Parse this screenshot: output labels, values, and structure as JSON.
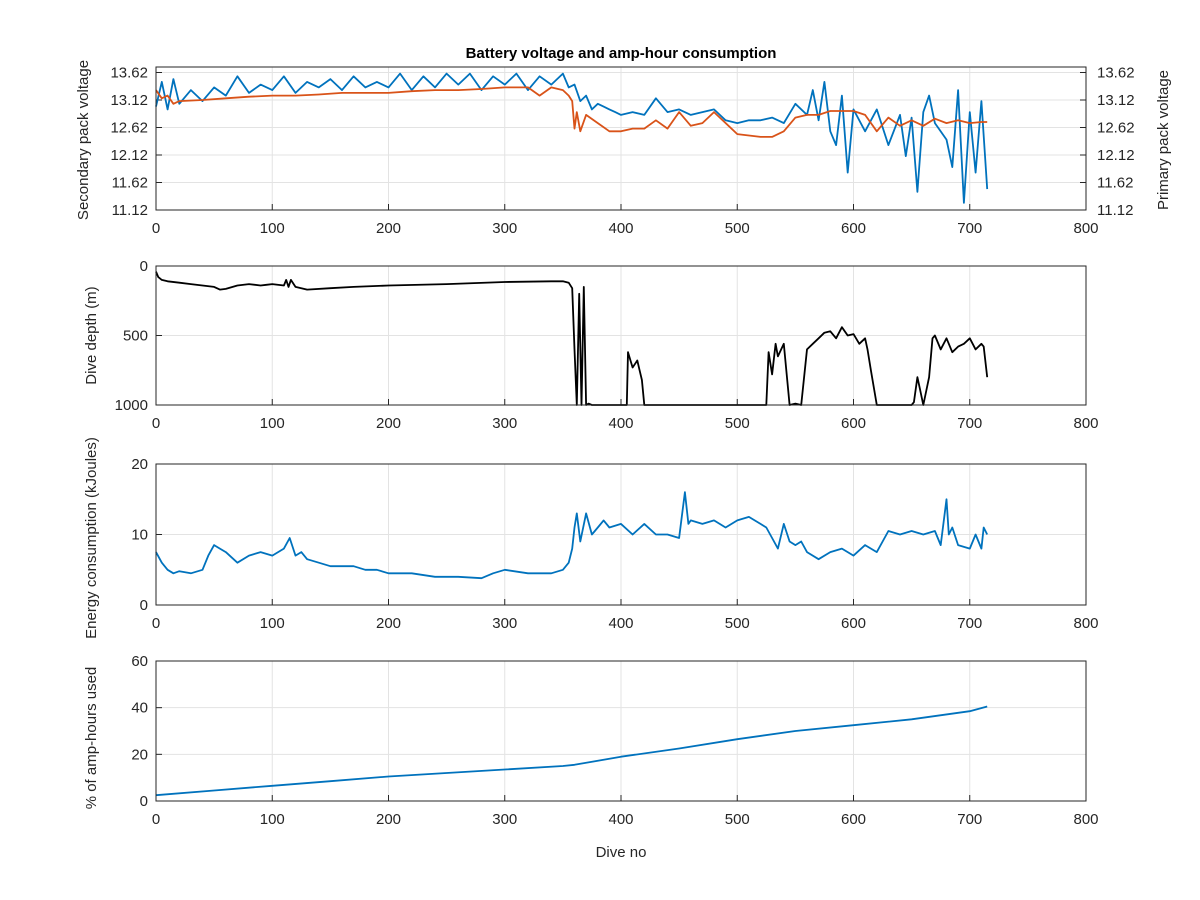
{
  "figure": {
    "title": "Battery voltage and amp-hour consumption",
    "xlabel": "Dive no",
    "x_ticks": [
      "0",
      "100",
      "200",
      "300",
      "400",
      "500",
      "600",
      "700",
      "800"
    ]
  },
  "colors": {
    "secondary": "#0072BD",
    "primary": "#D95319",
    "depth": "#000000",
    "energy": "#0072BD",
    "amphours": "#0072BD"
  },
  "chart_data": [
    {
      "type": "line",
      "title": "Battery voltage and amp-hour consumption",
      "xlabel": "",
      "xlim": [
        0,
        800
      ],
      "grid": true,
      "left_axis": {
        "label": "Secondary pack voltage",
        "ylim": [
          11.12,
          13.72
        ],
        "ticks": [
          "13.62",
          "13.12",
          "12.62",
          "12.12",
          "11.62",
          "11.12"
        ]
      },
      "right_axis": {
        "label": "Primary pack voltage",
        "ylim": [
          11.12,
          13.72
        ],
        "ticks": [
          "13.62",
          "13.12",
          "12.62",
          "12.12",
          "11.62",
          "11.12"
        ]
      },
      "series": [
        {
          "axis": "left",
          "color": "#0072BD",
          "x": [
            0,
            5,
            10,
            15,
            20,
            30,
            40,
            50,
            60,
            70,
            80,
            90,
            100,
            110,
            120,
            130,
            140,
            150,
            160,
            170,
            180,
            190,
            200,
            210,
            220,
            230,
            240,
            250,
            260,
            270,
            280,
            290,
            300,
            310,
            320,
            330,
            340,
            350,
            355,
            360,
            365,
            370,
            375,
            380,
            385,
            390,
            395,
            400,
            410,
            420,
            430,
            440,
            450,
            460,
            470,
            480,
            490,
            500,
            510,
            520,
            530,
            540,
            550,
            560,
            565,
            570,
            575,
            580,
            585,
            590,
            595,
            600,
            610,
            620,
            630,
            640,
            645,
            650,
            655,
            660,
            665,
            670,
            680,
            685,
            690,
            695,
            700,
            705,
            710,
            715
          ],
          "y": [
            13.0,
            13.45,
            12.95,
            13.5,
            13.05,
            13.3,
            13.1,
            13.35,
            13.2,
            13.55,
            13.25,
            13.4,
            13.3,
            13.55,
            13.25,
            13.45,
            13.35,
            13.5,
            13.3,
            13.55,
            13.35,
            13.45,
            13.35,
            13.6,
            13.3,
            13.55,
            13.35,
            13.6,
            13.4,
            13.6,
            13.3,
            13.55,
            13.4,
            13.6,
            13.3,
            13.55,
            13.4,
            13.6,
            13.35,
            13.4,
            13.1,
            13.2,
            12.95,
            13.05,
            13.0,
            12.95,
            12.9,
            12.85,
            12.9,
            12.85,
            13.15,
            12.9,
            12.95,
            12.85,
            12.9,
            12.95,
            12.75,
            12.7,
            12.75,
            12.75,
            12.8,
            12.7,
            13.05,
            12.85,
            13.3,
            12.75,
            13.45,
            12.55,
            12.3,
            13.2,
            11.8,
            12.95,
            12.55,
            12.95,
            12.3,
            12.85,
            12.1,
            12.8,
            11.45,
            12.9,
            13.2,
            12.7,
            12.4,
            11.9,
            13.3,
            11.25,
            12.9,
            11.8,
            13.1,
            11.5
          ]
        },
        {
          "axis": "right",
          "color": "#D95319",
          "x": [
            0,
            5,
            10,
            15,
            20,
            40,
            60,
            80,
            100,
            120,
            140,
            160,
            180,
            200,
            220,
            240,
            260,
            280,
            300,
            320,
            330,
            340,
            350,
            355,
            358,
            360,
            362,
            365,
            370,
            380,
            390,
            400,
            410,
            420,
            430,
            440,
            450,
            460,
            470,
            480,
            500,
            520,
            530,
            540,
            550,
            560,
            570,
            580,
            590,
            600,
            610,
            620,
            630,
            640,
            650,
            660,
            670,
            680,
            690,
            700,
            710,
            715
          ],
          "y": [
            13.3,
            13.15,
            13.2,
            13.05,
            13.1,
            13.12,
            13.15,
            13.18,
            13.2,
            13.2,
            13.22,
            13.25,
            13.25,
            13.25,
            13.28,
            13.3,
            13.3,
            13.32,
            13.35,
            13.35,
            13.2,
            13.35,
            13.3,
            13.2,
            13.1,
            12.6,
            12.9,
            12.55,
            12.85,
            12.7,
            12.55,
            12.55,
            12.6,
            12.6,
            12.75,
            12.6,
            12.9,
            12.65,
            12.7,
            12.9,
            12.5,
            12.45,
            12.45,
            12.55,
            12.8,
            12.85,
            12.85,
            12.92,
            12.92,
            12.92,
            12.85,
            12.55,
            12.8,
            12.65,
            12.75,
            12.65,
            12.78,
            12.7,
            12.75,
            12.7,
            12.72,
            12.72
          ]
        }
      ]
    },
    {
      "type": "line",
      "title": "",
      "xlabel": "",
      "ylabel": "Dive depth (m)",
      "xlim": [
        0,
        800
      ],
      "ylim": [
        0,
        1000
      ],
      "y_reversed": true,
      "y_ticks": [
        "0",
        "500",
        "1000"
      ],
      "grid": true,
      "series": [
        {
          "color": "#000000",
          "x": [
            0,
            2,
            5,
            10,
            20,
            30,
            40,
            50,
            55,
            60,
            70,
            80,
            90,
            95,
            100,
            110,
            112,
            114,
            116,
            120,
            125,
            130,
            150,
            170,
            200,
            250,
            300,
            340,
            350,
            355,
            358,
            360,
            362,
            364,
            366,
            368,
            370,
            372,
            375,
            400,
            405,
            406,
            410,
            414,
            416,
            418,
            420,
            450,
            500,
            525,
            527,
            530,
            533,
            535,
            540,
            545,
            550,
            555,
            560,
            565,
            570,
            575,
            580,
            585,
            590,
            595,
            600,
            605,
            610,
            612,
            615,
            620,
            650,
            652,
            655,
            657,
            660,
            665,
            668,
            670,
            675,
            680,
            685,
            690,
            695,
            700,
            705,
            710,
            712,
            715
          ],
          "y": [
            40,
            80,
            100,
            110,
            120,
            130,
            140,
            150,
            170,
            165,
            140,
            130,
            140,
            135,
            130,
            140,
            100,
            150,
            100,
            150,
            160,
            170,
            160,
            150,
            140,
            130,
            115,
            110,
            110,
            120,
            160,
            600,
            1000,
            200,
            1000,
            150,
            1000,
            990,
            1000,
            1000,
            1000,
            620,
            730,
            680,
            750,
            820,
            1000,
            1000,
            1000,
            1000,
            620,
            780,
            560,
            650,
            560,
            1000,
            990,
            1000,
            600,
            560,
            520,
            480,
            470,
            520,
            440,
            500,
            490,
            560,
            520,
            600,
            750,
            1000,
            1000,
            980,
            800,
            880,
            1000,
            800,
            520,
            500,
            600,
            520,
            620,
            580,
            560,
            520,
            600,
            560,
            580,
            800
          ]
        }
      ]
    },
    {
      "type": "line",
      "title": "",
      "xlabel": "",
      "ylabel": "Energy consumption (kJoules)",
      "xlim": [
        0,
        800
      ],
      "ylim": [
        0,
        20
      ],
      "y_ticks": [
        "20",
        "10",
        "0"
      ],
      "grid": true,
      "series": [
        {
          "color": "#0072BD",
          "x": [
            0,
            5,
            10,
            15,
            20,
            30,
            40,
            45,
            50,
            55,
            60,
            70,
            80,
            90,
            100,
            110,
            115,
            120,
            125,
            130,
            140,
            150,
            160,
            170,
            180,
            190,
            200,
            220,
            240,
            260,
            280,
            290,
            300,
            320,
            340,
            350,
            355,
            358,
            360,
            362,
            365,
            370,
            375,
            380,
            385,
            390,
            400,
            410,
            420,
            430,
            440,
            450,
            455,
            458,
            460,
            470,
            480,
            490,
            500,
            510,
            520,
            525,
            530,
            535,
            540,
            545,
            550,
            555,
            560,
            570,
            580,
            590,
            600,
            610,
            620,
            630,
            640,
            650,
            660,
            670,
            675,
            680,
            682,
            685,
            690,
            700,
            705,
            710,
            712,
            715
          ],
          "y": [
            7.5,
            6,
            5,
            4.5,
            4.8,
            4.5,
            5,
            7,
            8.5,
            8,
            7.5,
            6,
            7,
            7.5,
            7,
            8,
            9.5,
            7,
            7.5,
            6.5,
            6,
            5.5,
            5.5,
            5.5,
            5,
            5,
            4.5,
            4.5,
            4,
            4,
            3.8,
            4.5,
            5,
            4.5,
            4.5,
            5,
            6,
            8,
            11,
            13,
            9,
            13,
            10,
            11,
            12,
            11,
            11.5,
            10,
            11.5,
            10,
            10,
            9.5,
            16,
            11.5,
            12,
            11.5,
            12,
            11,
            12,
            12.5,
            11.5,
            11,
            9.5,
            8,
            11.5,
            9,
            8.5,
            9,
            7.5,
            6.5,
            7.5,
            8,
            7,
            8.5,
            7.5,
            10.5,
            10,
            10.5,
            10,
            10.5,
            8.5,
            15,
            10,
            11,
            8.5,
            8,
            10,
            8,
            11,
            10
          ]
        }
      ]
    },
    {
      "type": "line",
      "title": "",
      "xlabel": "Dive no",
      "ylabel": "% of amp-hours used",
      "xlim": [
        0,
        800
      ],
      "ylim": [
        0,
        60
      ],
      "y_ticks": [
        "60",
        "40",
        "20",
        "0"
      ],
      "grid": true,
      "series": [
        {
          "color": "#0072BD",
          "x": [
            0,
            50,
            100,
            150,
            200,
            250,
            300,
            350,
            360,
            400,
            450,
            500,
            550,
            600,
            650,
            700,
            715
          ],
          "y": [
            2.5,
            4.5,
            6.5,
            8.5,
            10.5,
            12,
            13.5,
            15,
            15.5,
            19,
            22.5,
            26.5,
            30,
            32.5,
            35,
            38.5,
            40.5
          ]
        }
      ]
    }
  ]
}
